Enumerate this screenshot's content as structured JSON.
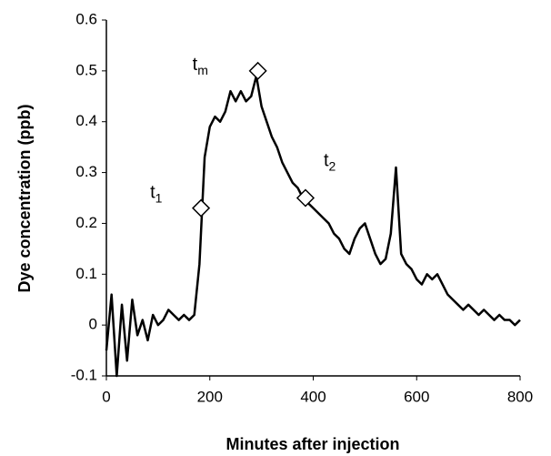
{
  "chart_data": {
    "type": "line",
    "x_label": "Minutes after injection",
    "y_label": "Dye concentration (ppb)",
    "x": [
      0,
      10,
      20,
      30,
      40,
      50,
      60,
      70,
      80,
      90,
      100,
      110,
      120,
      130,
      140,
      150,
      160,
      170,
      180,
      190,
      200,
      210,
      220,
      230,
      240,
      250,
      260,
      270,
      280,
      290,
      300,
      310,
      320,
      330,
      340,
      350,
      360,
      370,
      380,
      390,
      400,
      410,
      420,
      430,
      440,
      450,
      460,
      470,
      480,
      490,
      500,
      510,
      520,
      530,
      540,
      550,
      560,
      570,
      580,
      590,
      600,
      610,
      620,
      630,
      640,
      650,
      660,
      670,
      680,
      690,
      700,
      710,
      720,
      730,
      740,
      750,
      760,
      770,
      780,
      790,
      800
    ],
    "series": [
      {
        "color": "#000000",
        "values": [
          -0.05,
          0.06,
          -0.1,
          0.04,
          -0.07,
          0.05,
          -0.02,
          0.01,
          -0.03,
          0.02,
          0.0,
          0.01,
          0.03,
          0.02,
          0.01,
          0.02,
          0.01,
          0.02,
          0.12,
          0.33,
          0.39,
          0.41,
          0.4,
          0.42,
          0.46,
          0.44,
          0.46,
          0.44,
          0.45,
          0.49,
          0.43,
          0.4,
          0.37,
          0.35,
          0.32,
          0.3,
          0.28,
          0.27,
          0.25,
          0.24,
          0.23,
          0.22,
          0.21,
          0.2,
          0.18,
          0.17,
          0.15,
          0.14,
          0.17,
          0.19,
          0.2,
          0.17,
          0.14,
          0.12,
          0.13,
          0.18,
          0.31,
          0.14,
          0.12,
          0.11,
          0.09,
          0.08,
          0.1,
          0.09,
          0.1,
          0.08,
          0.06,
          0.05,
          0.04,
          0.03,
          0.04,
          0.03,
          0.02,
          0.03,
          0.02,
          0.01,
          0.02,
          0.01,
          0.01,
          0.0,
          0.01
        ]
      }
    ],
    "markers": [
      {
        "label": "t",
        "subscript": "1",
        "x": 183,
        "y": 0.23
      },
      {
        "label": "t",
        "subscript": "m",
        "x": 293,
        "y": 0.5
      },
      {
        "label": "t",
        "subscript": "2",
        "x": 385,
        "y": 0.25
      }
    ],
    "xlim": [
      0,
      800
    ],
    "xticks": [
      0,
      200,
      400,
      600,
      800
    ],
    "ylim": [
      -0.1,
      0.6
    ],
    "yticks": [
      -0.1,
      0,
      0.1,
      0.2,
      0.3,
      0.4,
      0.5,
      0.6
    ],
    "grid": false
  }
}
